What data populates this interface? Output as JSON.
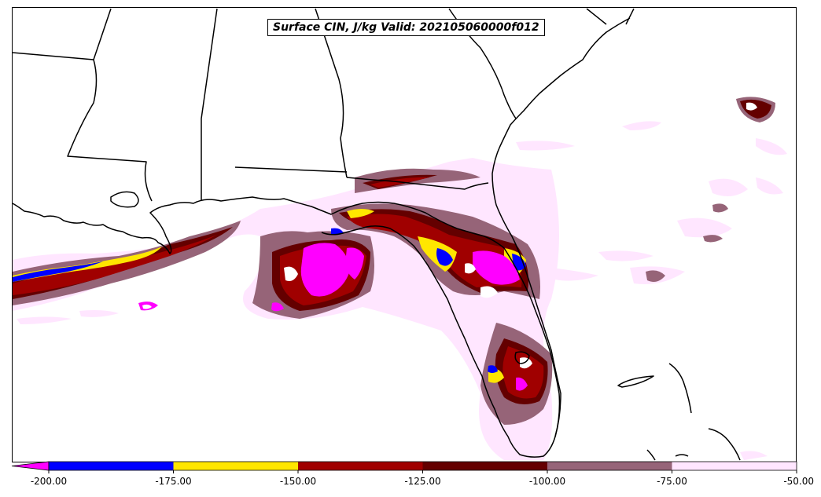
{
  "title": "Surface CIN, J/kg Valid: 202105060000f012",
  "colorbar": {
    "ticks": [
      "-200.00",
      "-175.00",
      "-150.00",
      "-125.00",
      "-100.00",
      "-75.00",
      "-50.00"
    ],
    "bins": [
      {
        "from": -200,
        "to": -175,
        "color": "#0000ff"
      },
      {
        "from": -175,
        "to": -150,
        "color": "#ffe600"
      },
      {
        "from": -150,
        "to": -125,
        "color": "#a00000"
      },
      {
        "from": -125,
        "to": -100,
        "color": "#640000"
      },
      {
        "from": -100,
        "to": -75,
        "color": "#966478"
      },
      {
        "from": -75,
        "to": -50,
        "color": "#ffe6ff"
      }
    ],
    "under_color": "#ff00ff"
  },
  "palette": {
    "magenta": "#ff00ff",
    "blue": "#0000ff",
    "yellow": "#ffe600",
    "red": "#a00000",
    "darkred": "#640000",
    "mauve": "#966478",
    "pink": "#ffe6ff"
  }
}
